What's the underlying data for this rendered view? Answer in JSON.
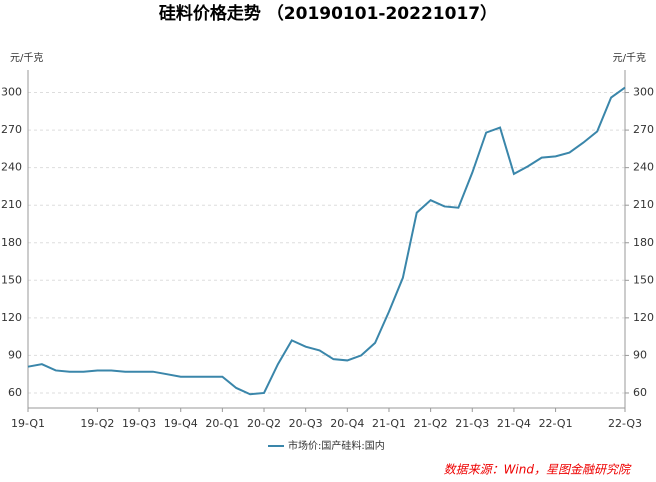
{
  "chart_data": {
    "type": "line",
    "title": "硅料价格走势 （20190101-20221017）",
    "y_unit": "元/千克",
    "y2_unit": "元/千克",
    "source": "数据来源：Wind，星图金融研究院",
    "categories": [
      "19-Q1",
      null,
      null,
      null,
      null,
      "19-Q2",
      null,
      null,
      "19-Q3",
      null,
      null,
      "19-Q4",
      null,
      null,
      "20-Q1",
      null,
      null,
      "20-Q2",
      null,
      null,
      "20-Q3",
      null,
      null,
      "20-Q4",
      null,
      null,
      "21-Q1",
      null,
      null,
      "21-Q2",
      null,
      null,
      "21-Q3",
      null,
      null,
      "21-Q4",
      null,
      null,
      "22-Q1",
      null,
      null,
      null,
      null,
      "22-Q3"
    ],
    "series": [
      {
        "name": "市场价:国产硅料:国内",
        "color": "#3a86aa",
        "values": [
          81,
          83,
          78,
          77,
          77,
          78,
          78,
          77,
          77,
          77,
          75,
          73,
          73,
          73,
          73,
          64,
          59,
          60,
          83,
          102,
          97,
          94,
          87,
          86,
          90,
          100,
          125,
          152,
          204,
          214,
          209,
          208,
          236,
          268,
          272,
          235,
          241,
          248,
          249,
          252,
          260,
          269,
          296,
          304
        ]
      }
    ],
    "ylim": [
      48,
      318
    ],
    "yticks": [
      60,
      90,
      120,
      150,
      180,
      210,
      240,
      270,
      300
    ],
    "y2lim": [
      48,
      318
    ],
    "y2ticks": [
      60,
      90,
      120,
      150,
      180,
      210,
      240,
      270,
      300
    ],
    "grid": true
  }
}
